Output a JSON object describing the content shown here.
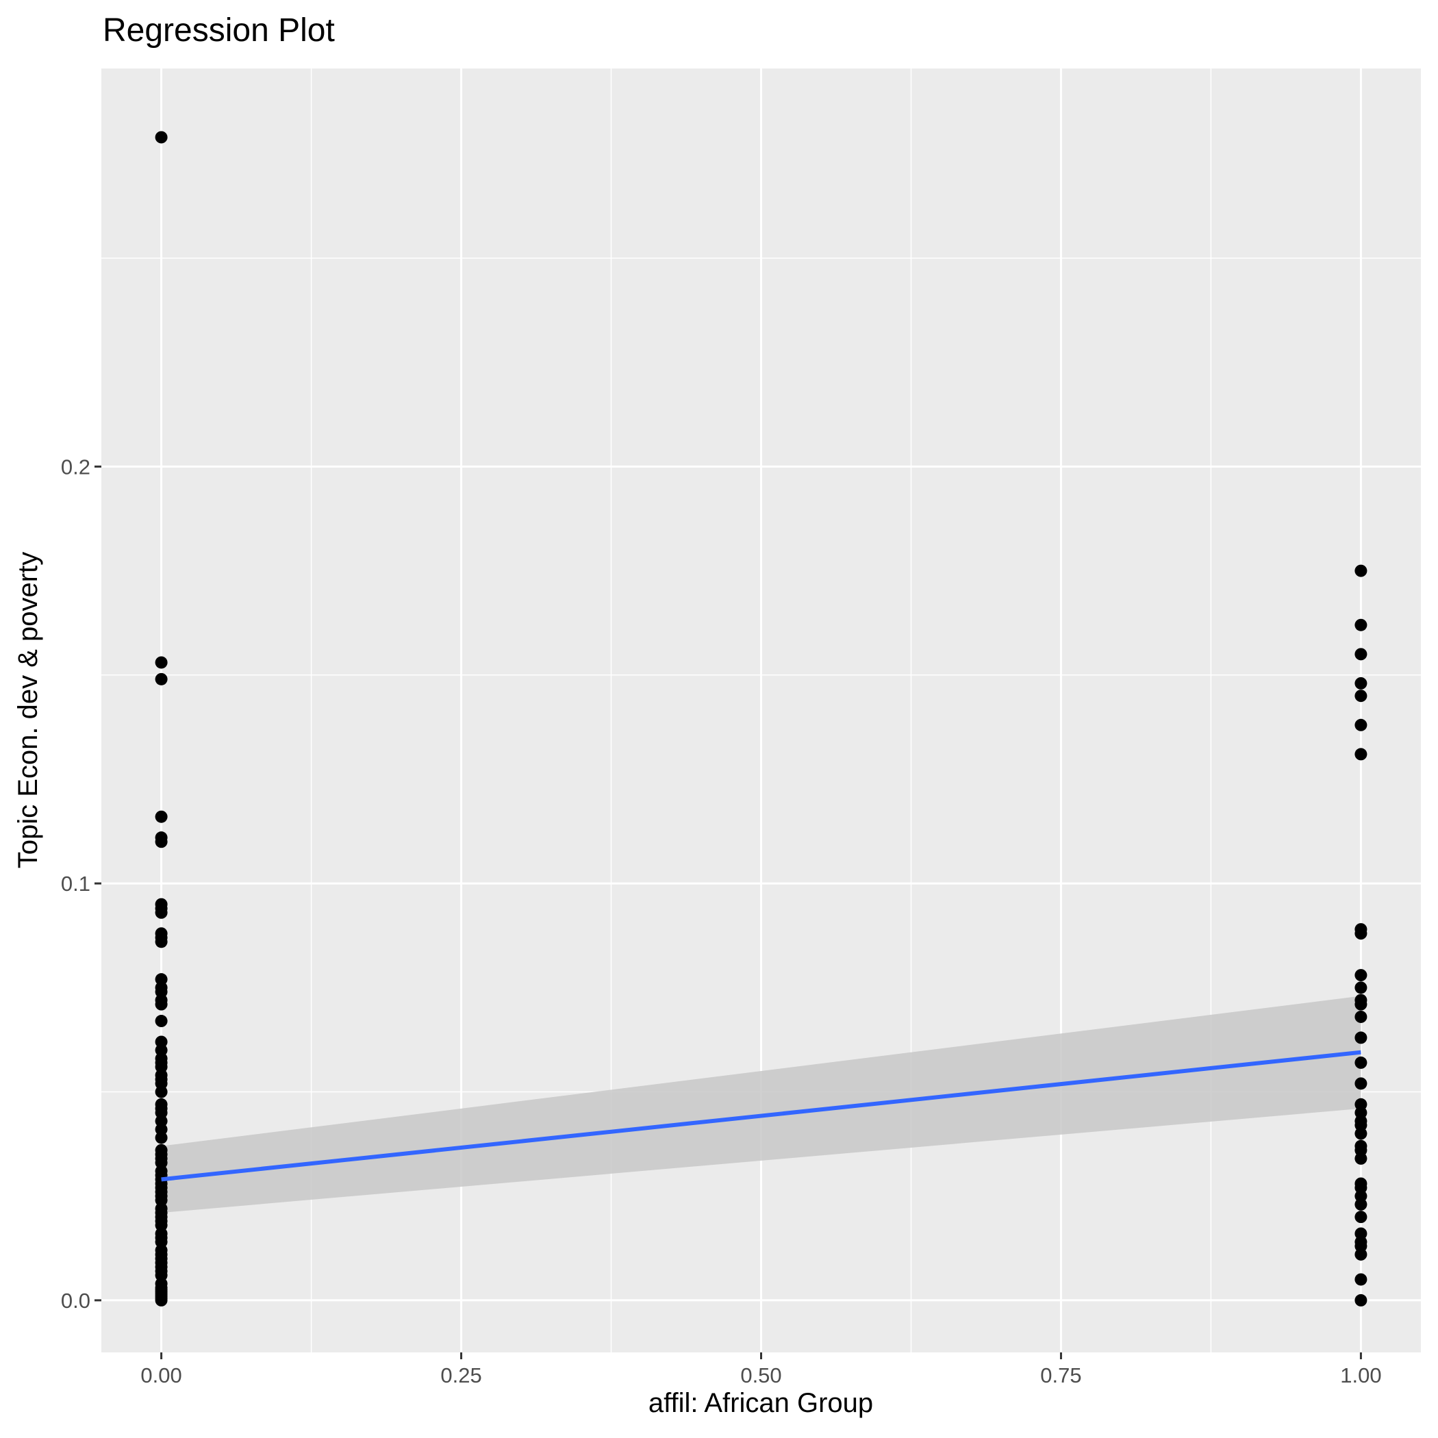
{
  "chart_data": {
    "type": "scatter",
    "title": "Regression Plot",
    "xlabel": "affil: African Group",
    "ylabel": "Topic Econ. dev & poverty",
    "xlim": [
      -0.05,
      1.05
    ],
    "ylim": [
      -0.0125,
      0.2955
    ],
    "x_ticks": [
      {
        "value": 0.0,
        "label": "0.00"
      },
      {
        "value": 0.25,
        "label": "0.25"
      },
      {
        "value": 0.5,
        "label": "0.50"
      },
      {
        "value": 0.75,
        "label": "0.75"
      },
      {
        "value": 1.0,
        "label": "1.00"
      }
    ],
    "y_ticks": [
      {
        "value": 0.0,
        "label": "0.0"
      },
      {
        "value": 0.1,
        "label": "0.1"
      },
      {
        "value": 0.2,
        "label": "0.2"
      }
    ],
    "grid": true,
    "colors": {
      "panel_background": "#EBEBEB",
      "grid_major": "#FFFFFF",
      "points": "#000000",
      "regression_line": "#3366FF",
      "confidence_band": "#C8C8C8"
    },
    "series": [
      {
        "x": [
          0,
          0,
          0,
          0,
          0,
          0,
          0,
          0,
          0,
          0,
          0,
          0,
          0,
          0,
          0,
          0,
          0,
          0,
          0,
          0,
          0,
          0,
          0,
          0,
          0,
          0,
          0,
          0,
          0,
          0,
          0,
          0,
          0,
          0,
          0,
          0,
          0,
          0,
          0,
          0,
          0,
          0,
          0,
          0,
          0,
          0,
          0,
          0,
          0,
          0,
          0,
          0,
          0,
          0,
          0,
          0,
          0,
          0,
          0,
          0,
          0,
          0,
          0,
          0,
          0,
          0,
          0,
          0
        ],
        "y": [
          0.279,
          0.153,
          0.149,
          0.116,
          0.111,
          0.11,
          0.095,
          0.093,
          0.087,
          0.086,
          0.077,
          0.075,
          0.074,
          0.071,
          0.067,
          0.062,
          0.06,
          0.058,
          0.056,
          0.054,
          0.052,
          0.05,
          0.046,
          0.045,
          0.043,
          0.041,
          0.039,
          0.036,
          0.035,
          0.033,
          0.031,
          0.03,
          0.029,
          0.028,
          0.027,
          0.025,
          0.024,
          0.022,
          0.02,
          0.019,
          0.018,
          0.016,
          0.015,
          0.012,
          0.01,
          0.009,
          0.008,
          0.007,
          0.006,
          0.003,
          0.002,
          0.001,
          0.0005,
          0.0,
          0.047,
          0.053,
          0.057,
          0.072,
          0.088,
          0.094,
          0.034,
          0.026,
          0.021,
          0.014,
          0.011,
          0.004,
          0.0015,
          0.0025
        ]
      },
      {
        "x": [
          1,
          1,
          1,
          1,
          1,
          1,
          1,
          1,
          1,
          1,
          1,
          1,
          1,
          1,
          1,
          1,
          1,
          1,
          1,
          1,
          1,
          1,
          1,
          1,
          1,
          1,
          1,
          1,
          1,
          1,
          1,
          1,
          1,
          1,
          1,
          1
        ],
        "y": [
          0.175,
          0.162,
          0.155,
          0.148,
          0.145,
          0.138,
          0.131,
          0.089,
          0.088,
          0.078,
          0.075,
          0.072,
          0.071,
          0.068,
          0.063,
          0.057,
          0.052,
          0.047,
          0.045,
          0.043,
          0.042,
          0.04,
          0.037,
          0.036,
          0.034,
          0.028,
          0.027,
          0.025,
          0.023,
          0.02,
          0.016,
          0.014,
          0.013,
          0.011,
          0.005,
          0.0
        ]
      }
    ],
    "regression": {
      "x": [
        0,
        1
      ],
      "y": [
        0.029,
        0.0595
      ],
      "ci_lower": [
        0.021,
        0.046
      ],
      "ci_upper": [
        0.037,
        0.073
      ]
    }
  }
}
